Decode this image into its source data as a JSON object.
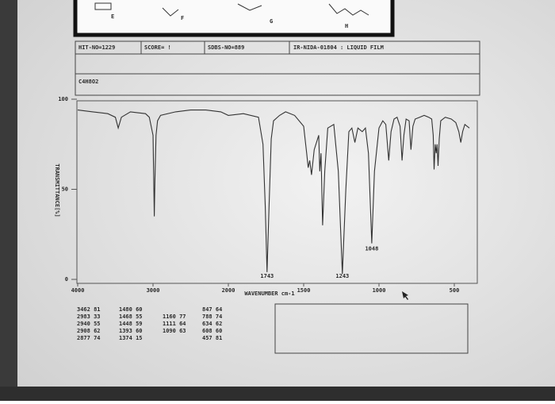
{
  "header": {
    "structure_labels": [
      "E",
      "F",
      "G",
      "H"
    ],
    "hit": "HIT-NO=1229",
    "score": "SCORE= !",
    "sdbs": "SDBS-NO=889",
    "source": "IR-NIDA-01804 : LIQUID FILM",
    "formula": "C4H8O2"
  },
  "chart_data": {
    "type": "line",
    "color": "#333333",
    "xlabel": "WAVENUMBER cm-1",
    "ylabel": "TRANSMITTANCE[%]",
    "x": [
      4000,
      3800,
      3600,
      3500,
      3462,
      3420,
      3300,
      3100,
      3050,
      3000,
      2990,
      2983,
      2975,
      2960,
      2940,
      2900,
      2700,
      2500,
      2300,
      2100,
      2000,
      1900,
      1800,
      1770,
      1755,
      1743,
      1730,
      1715,
      1700,
      1660,
      1620,
      1560,
      1500,
      1480,
      1470,
      1460,
      1448,
      1430,
      1400,
      1393,
      1385,
      1374,
      1360,
      1340,
      1300,
      1270,
      1243,
      1220,
      1200,
      1180,
      1160,
      1140,
      1111,
      1090,
      1070,
      1048,
      1030,
      1000,
      975,
      955,
      935,
      920,
      900,
      880,
      860,
      847,
      835,
      820,
      800,
      788,
      775,
      760,
      730,
      700,
      670,
      650,
      640,
      634,
      627,
      620,
      614,
      608,
      600,
      590,
      560,
      520,
      490,
      470,
      457,
      445,
      430,
      415,
      400
    ],
    "values": [
      94,
      93,
      92,
      90,
      84,
      90,
      93,
      92,
      90,
      80,
      55,
      35,
      55,
      80,
      88,
      91,
      93,
      94,
      94,
      93,
      91,
      92,
      90,
      75,
      40,
      4,
      40,
      78,
      88,
      91,
      93,
      91,
      85,
      70,
      62,
      66,
      58,
      72,
      80,
      60,
      70,
      30,
      60,
      84,
      86,
      60,
      3,
      50,
      82,
      84,
      76,
      84,
      82,
      84,
      70,
      20,
      60,
      84,
      88,
      86,
      66,
      82,
      89,
      90,
      85,
      66,
      80,
      89,
      88,
      72,
      85,
      89,
      90,
      91,
      90,
      89,
      80,
      61,
      75,
      70,
      75,
      63,
      78,
      88,
      90,
      89,
      87,
      82,
      76,
      82,
      86,
      85,
      84
    ],
    "xlim": [
      4000,
      400
    ],
    "xticks": [
      4000,
      3000,
      2000,
      1500,
      1000,
      500
    ],
    "ylim": [
      0,
      100
    ],
    "yticks": [
      100,
      50,
      0
    ],
    "annotations": [
      {
        "text": "1743",
        "x": 1743
      },
      {
        "text": "1243",
        "x": 1243
      },
      {
        "text": "1048",
        "x": 1048
      }
    ]
  },
  "peak_table": {
    "columns": [
      [
        "3462 81",
        "2983 33",
        "2940 55",
        "2908 62",
        "2877 74"
      ],
      [
        "1480 60",
        "1468 55",
        "1448 59",
        "1393 60",
        "1374 15"
      ],
      [
        "1160 77",
        "1111 64",
        "1090 63"
      ],
      [
        "847 64",
        "788 74",
        "634 62",
        "608 60",
        "457 81"
      ]
    ]
  }
}
